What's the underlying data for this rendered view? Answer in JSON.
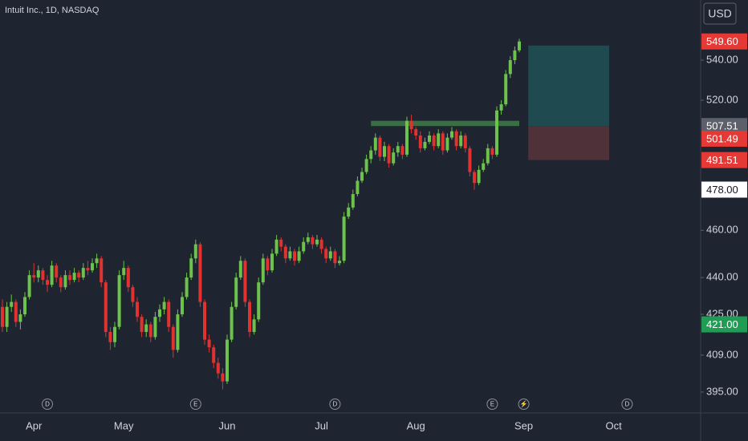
{
  "chart_data": {
    "type": "candlestick",
    "title": "Intuit Inc., 1D, NASDAQ",
    "currency": "USD",
    "log_scale": true,
    "up_color": "#6cc24a",
    "down_color": "#e2322f",
    "ylim": [
      387.3,
      571.5
    ],
    "yticks": [
      {
        "value": 540,
        "label": "540.00"
      },
      {
        "value": 520,
        "label": "520.00"
      },
      {
        "value": 460,
        "label": "460.00"
      },
      {
        "value": 440,
        "label": "440.00"
      },
      {
        "value": 425,
        "label": "425.00"
      },
      {
        "value": 409,
        "label": "409.00"
      },
      {
        "value": 395,
        "label": "395.00"
      }
    ],
    "price_labels": [
      {
        "value": 549.6,
        "label": "549.60",
        "color": "#e53935",
        "text_color": "#ffffff"
      },
      {
        "value": 507.51,
        "label": "507.51",
        "color": "#5d606b",
        "text_color": "#ffffff"
      },
      {
        "value": 501.49,
        "label": "501.49",
        "color": "#e53935",
        "text_color": "#ffffff"
      },
      {
        "value": 491.51,
        "label": "491.51",
        "color": "#e53935",
        "text_color": "#ffffff"
      },
      {
        "value": 478,
        "label": "478.00",
        "color": "#ffffff",
        "text_color": "#131722"
      },
      {
        "value": 421,
        "label": "421.00",
        "color": "#1f9d55",
        "text_color": "#ffffff"
      }
    ],
    "time_axis": [
      {
        "label": "Apr",
        "index": 7
      },
      {
        "label": "May",
        "index": 27
      },
      {
        "label": "Jun",
        "index": 50
      },
      {
        "label": "Jul",
        "index": 71
      },
      {
        "label": "Aug",
        "index": 92
      },
      {
        "label": "Sep",
        "index": 116
      },
      {
        "label": "Oct",
        "index": 136
      }
    ],
    "events": [
      {
        "label": "D",
        "index": 10
      },
      {
        "label": "E",
        "index": 43
      },
      {
        "label": "D",
        "index": 74
      },
      {
        "label": "E",
        "index": 109
      },
      {
        "label": "⚡",
        "index": 116
      },
      {
        "label": "D",
        "index": 139
      }
    ],
    "zone": {
      "top": 510,
      "bottom": 507.5,
      "start_index": 82,
      "end_index": 115,
      "color": "#3e7d45"
    },
    "position": {
      "target": 547.5,
      "entry": 507.51,
      "stop": 491.51,
      "start_index": 117,
      "end_index": 135,
      "target_color": "#1f4a4f",
      "stop_color": "#4f3139"
    },
    "ohlc": [
      [
        428,
        431,
        418,
        420
      ],
      [
        420,
        430,
        418,
        428
      ],
      [
        428,
        433,
        426,
        430
      ],
      [
        430,
        431,
        420,
        422
      ],
      [
        422,
        427,
        419,
        425
      ],
      [
        425,
        434,
        424,
        432
      ],
      [
        432,
        443,
        431,
        441
      ],
      [
        441,
        446,
        438,
        440
      ],
      [
        440,
        445,
        438,
        443
      ],
      [
        443,
        444,
        437,
        439
      ],
      [
        439,
        441,
        434,
        437
      ],
      [
        437,
        447,
        436,
        445
      ],
      [
        445,
        446,
        438,
        440
      ],
      [
        440,
        441,
        434,
        436
      ],
      [
        436,
        443,
        435,
        441
      ],
      [
        441,
        443,
        437,
        439
      ],
      [
        439,
        444,
        438,
        442
      ],
      [
        442,
        443,
        438,
        440
      ],
      [
        440,
        446,
        439,
        444
      ],
      [
        444,
        447,
        441,
        443
      ],
      [
        443,
        448,
        442,
        446
      ],
      [
        446,
        450,
        444,
        448
      ],
      [
        448,
        449,
        436,
        438
      ],
      [
        438,
        439,
        416,
        418
      ],
      [
        418,
        420,
        411,
        414
      ],
      [
        414,
        422,
        412,
        420
      ],
      [
        420,
        443,
        419,
        441
      ],
      [
        441,
        447,
        439,
        444
      ],
      [
        444,
        445,
        434,
        436
      ],
      [
        436,
        437,
        428,
        430
      ],
      [
        430,
        432,
        422,
        424
      ],
      [
        424,
        425,
        416,
        418
      ],
      [
        418,
        423,
        416,
        421
      ],
      [
        421,
        422,
        414,
        416
      ],
      [
        416,
        426,
        415,
        424
      ],
      [
        424,
        429,
        422,
        427
      ],
      [
        427,
        432,
        425,
        430
      ],
      [
        430,
        431,
        418,
        420
      ],
      [
        420,
        421,
        408,
        411
      ],
      [
        411,
        427,
        410,
        425
      ],
      [
        425,
        434,
        424,
        432
      ],
      [
        432,
        442,
        431,
        440
      ],
      [
        440,
        450,
        439,
        448
      ],
      [
        448,
        456,
        446,
        454
      ],
      [
        454,
        455,
        428,
        430
      ],
      [
        430,
        431,
        413,
        415
      ],
      [
        415,
        417,
        410,
        412
      ],
      [
        412,
        413,
        404,
        406
      ],
      [
        406,
        408,
        400,
        402
      ],
      [
        402,
        404,
        396,
        399
      ],
      [
        399,
        417,
        398,
        415
      ],
      [
        415,
        430,
        414,
        428
      ],
      [
        428,
        442,
        427,
        440
      ],
      [
        440,
        449,
        439,
        447
      ],
      [
        447,
        448,
        428,
        430
      ],
      [
        430,
        431,
        416,
        418
      ],
      [
        418,
        425,
        417,
        423
      ],
      [
        423,
        440,
        422,
        438
      ],
      [
        438,
        450,
        437,
        448
      ],
      [
        448,
        449,
        441,
        443
      ],
      [
        443,
        452,
        442,
        450
      ],
      [
        450,
        458,
        449,
        456
      ],
      [
        456,
        457,
        451,
        453
      ],
      [
        453,
        454,
        446,
        448
      ],
      [
        448,
        453,
        447,
        451
      ],
      [
        451,
        452,
        445,
        447
      ],
      [
        447,
        453,
        446,
        451
      ],
      [
        451,
        457,
        450,
        455
      ],
      [
        455,
        459,
        454,
        457
      ],
      [
        457,
        458,
        452,
        454
      ],
      [
        454,
        458,
        453,
        456
      ],
      [
        456,
        457,
        450,
        452
      ],
      [
        452,
        453,
        446,
        448
      ],
      [
        448,
        453,
        447,
        451
      ],
      [
        451,
        452,
        444,
        446
      ],
      [
        446,
        449,
        445,
        447
      ],
      [
        447,
        468,
        446,
        466
      ],
      [
        466,
        472,
        465,
        470
      ],
      [
        470,
        478,
        469,
        476
      ],
      [
        476,
        484,
        475,
        482
      ],
      [
        482,
        488,
        481,
        486
      ],
      [
        486,
        494,
        485,
        492
      ],
      [
        492,
        498,
        490,
        496
      ],
      [
        496,
        504,
        494,
        502
      ],
      [
        502,
        503,
        491,
        493
      ],
      [
        493,
        500,
        491,
        498
      ],
      [
        498,
        499,
        488,
        490
      ],
      [
        490,
        497,
        489,
        495
      ],
      [
        495,
        500,
        493,
        498
      ],
      [
        498,
        499,
        492,
        494
      ],
      [
        494,
        512,
        493,
        510
      ],
      [
        510,
        513,
        504,
        506
      ],
      [
        506,
        507,
        501,
        503
      ],
      [
        503,
        505,
        495,
        497
      ],
      [
        497,
        502,
        496,
        500
      ],
      [
        500,
        505,
        499,
        503
      ],
      [
        503,
        504,
        496,
        498
      ],
      [
        498,
        506,
        497,
        504
      ],
      [
        504,
        505,
        494,
        496
      ],
      [
        496,
        504,
        495,
        502
      ],
      [
        502,
        507,
        501,
        505
      ],
      [
        505,
        506,
        496,
        498
      ],
      [
        498,
        505,
        497,
        503
      ],
      [
        503,
        504,
        495,
        497
      ],
      [
        497,
        498,
        484,
        486
      ],
      [
        486,
        487,
        478,
        481
      ],
      [
        481,
        489,
        480,
        487
      ],
      [
        487,
        492,
        486,
        490
      ],
      [
        490,
        499,
        489,
        497
      ],
      [
        497,
        498,
        492,
        494
      ],
      [
        494,
        517,
        493,
        515
      ],
      [
        515,
        520,
        513,
        518
      ],
      [
        518,
        535,
        517,
        533
      ],
      [
        533,
        542,
        531,
        540
      ],
      [
        540,
        547,
        538,
        545
      ],
      [
        545,
        551,
        544,
        549.6
      ]
    ]
  }
}
